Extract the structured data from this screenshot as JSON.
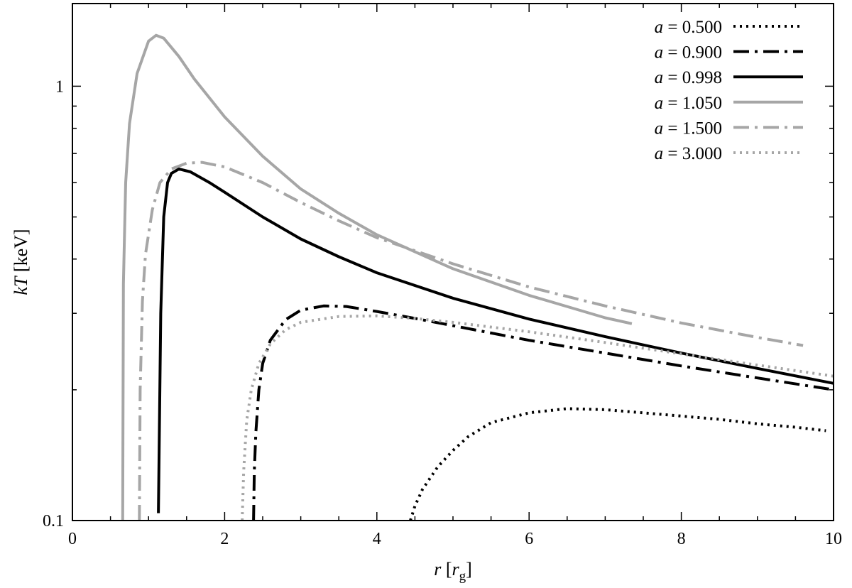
{
  "chart_data": {
    "type": "line",
    "title": "",
    "xlabel": {
      "var": "r",
      "pre": " [",
      "unit": "r",
      "sub": "g",
      "post": "]"
    },
    "ylabel": {
      "var": "kT",
      "unit": " [keV]"
    },
    "xlim": [
      0,
      10
    ],
    "ylim": [
      0.1,
      1.55
    ],
    "yscale": "log",
    "grid": false,
    "legend_position": "top-right",
    "x_ticks": [
      0,
      2,
      4,
      6,
      8,
      10
    ],
    "x_tick_labels": [
      "0",
      "2",
      "4",
      "6",
      "8",
      "10"
    ],
    "y_ticks": [
      0.1,
      1
    ],
    "y_tick_labels": [
      "0.1",
      "1"
    ],
    "series": [
      {
        "name": "a = 0.500",
        "legend_var": "a",
        "legend_rest": " = 0.500",
        "color": "#000000",
        "dash": "3 6",
        "width": 4,
        "points": [
          [
            4.44,
            0.1
          ],
          [
            4.5,
            0.108
          ],
          [
            4.6,
            0.118
          ],
          [
            4.8,
            0.133
          ],
          [
            5.0,
            0.145
          ],
          [
            5.2,
            0.156
          ],
          [
            5.5,
            0.168
          ],
          [
            6.0,
            0.177
          ],
          [
            6.5,
            0.181
          ],
          [
            7.0,
            0.18
          ],
          [
            7.5,
            0.177
          ],
          [
            8.0,
            0.174
          ],
          [
            8.5,
            0.171
          ],
          [
            9.0,
            0.167
          ],
          [
            9.5,
            0.164
          ],
          [
            9.9,
            0.161
          ]
        ]
      },
      {
        "name": "a = 0.900",
        "legend_var": "a",
        "legend_rest": " = 0.900",
        "color": "#000000",
        "dash": "22 8 4 8",
        "width": 4,
        "points": [
          [
            2.38,
            0.1
          ],
          [
            2.39,
            0.13
          ],
          [
            2.41,
            0.16
          ],
          [
            2.45,
            0.2
          ],
          [
            2.5,
            0.23
          ],
          [
            2.6,
            0.26
          ],
          [
            2.8,
            0.29
          ],
          [
            3.0,
            0.305
          ],
          [
            3.3,
            0.312
          ],
          [
            3.6,
            0.311
          ],
          [
            4.0,
            0.303
          ],
          [
            4.5,
            0.292
          ],
          [
            5.0,
            0.281
          ],
          [
            6.0,
            0.26
          ],
          [
            7.0,
            0.243
          ],
          [
            8.0,
            0.227
          ],
          [
            9.0,
            0.213
          ],
          [
            10.0,
            0.2
          ]
        ]
      },
      {
        "name": "a = 0.998",
        "legend_var": "a",
        "legend_rest": " = 0.998",
        "color": "#000000",
        "dash": "",
        "width": 4,
        "points": [
          [
            1.13,
            0.104
          ],
          [
            1.16,
            0.3
          ],
          [
            1.2,
            0.5
          ],
          [
            1.25,
            0.6
          ],
          [
            1.3,
            0.63
          ],
          [
            1.4,
            0.645
          ],
          [
            1.55,
            0.635
          ],
          [
            1.8,
            0.6
          ],
          [
            2.0,
            0.57
          ],
          [
            2.5,
            0.5
          ],
          [
            3.0,
            0.445
          ],
          [
            3.5,
            0.405
          ],
          [
            4.0,
            0.372
          ],
          [
            5.0,
            0.325
          ],
          [
            6.0,
            0.291
          ],
          [
            7.0,
            0.265
          ],
          [
            8.0,
            0.243
          ],
          [
            9.0,
            0.224
          ],
          [
            10.0,
            0.207
          ]
        ]
      },
      {
        "name": "a = 1.050",
        "legend_var": "a",
        "legend_rest": " = 1.050",
        "color": "#a6a6a6",
        "dash": "",
        "width": 4,
        "points": [
          [
            0.66,
            0.1
          ],
          [
            0.67,
            0.35
          ],
          [
            0.7,
            0.6
          ],
          [
            0.75,
            0.82
          ],
          [
            0.85,
            1.07
          ],
          [
            1.0,
            1.27
          ],
          [
            1.1,
            1.31
          ],
          [
            1.2,
            1.29
          ],
          [
            1.4,
            1.17
          ],
          [
            1.6,
            1.04
          ],
          [
            2.0,
            0.85
          ],
          [
            2.5,
            0.69
          ],
          [
            3.0,
            0.58
          ],
          [
            3.5,
            0.51
          ],
          [
            4.0,
            0.455
          ],
          [
            5.0,
            0.38
          ],
          [
            6.0,
            0.33
          ],
          [
            7.0,
            0.293
          ],
          [
            7.35,
            0.284
          ]
        ]
      },
      {
        "name": "a = 1.500",
        "legend_var": "a",
        "legend_rest": " = 1.500",
        "color": "#a6a6a6",
        "dash": "22 8 4 8",
        "width": 4,
        "points": [
          [
            0.88,
            0.1
          ],
          [
            0.89,
            0.2
          ],
          [
            0.92,
            0.32
          ],
          [
            0.96,
            0.41
          ],
          [
            1.05,
            0.52
          ],
          [
            1.15,
            0.6
          ],
          [
            1.3,
            0.645
          ],
          [
            1.5,
            0.665
          ],
          [
            1.7,
            0.668
          ],
          [
            2.0,
            0.652
          ],
          [
            2.5,
            0.6
          ],
          [
            3.0,
            0.54
          ],
          [
            3.5,
            0.49
          ],
          [
            4.0,
            0.448
          ],
          [
            5.0,
            0.39
          ],
          [
            6.0,
            0.345
          ],
          [
            7.0,
            0.312
          ],
          [
            8.0,
            0.285
          ],
          [
            9.0,
            0.264
          ],
          [
            9.6,
            0.253
          ]
        ]
      },
      {
        "name": "a = 3.000",
        "legend_var": "a",
        "legend_rest": " = 3.000",
        "color": "#a6a6a6",
        "dash": "3 6",
        "width": 4,
        "points": [
          [
            2.23,
            0.1
          ],
          [
            2.25,
            0.13
          ],
          [
            2.29,
            0.17
          ],
          [
            2.35,
            0.2
          ],
          [
            2.45,
            0.23
          ],
          [
            2.6,
            0.255
          ],
          [
            2.8,
            0.275
          ],
          [
            3.0,
            0.286
          ],
          [
            3.5,
            0.295
          ],
          [
            4.0,
            0.296
          ],
          [
            4.5,
            0.292
          ],
          [
            5.0,
            0.286
          ],
          [
            6.0,
            0.272
          ],
          [
            7.0,
            0.257
          ],
          [
            8.0,
            0.242
          ],
          [
            9.0,
            0.228
          ],
          [
            10.0,
            0.215
          ]
        ]
      }
    ]
  }
}
